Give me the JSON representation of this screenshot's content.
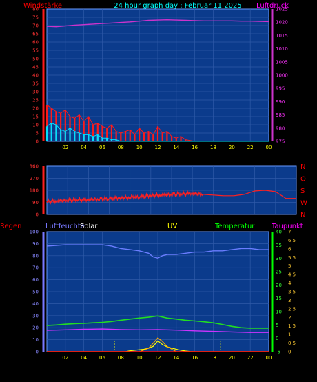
{
  "header": {
    "title": "24 hour graph day : Februar 11 2025",
    "left_label": "Windstärke",
    "right_label": "Luftdruck"
  },
  "panel2": {
    "compass": [
      "N",
      "W",
      "S",
      "O",
      "N"
    ]
  },
  "panel3": {
    "labels": {
      "regen": "Regen",
      "luftfeuchte": "Luftfeuchte",
      "solar": "Solar",
      "uv": "UV",
      "temperatur": "Temperatur",
      "taupunkt": "Taupunkt"
    }
  },
  "colors": {
    "background": "#000000",
    "plot_bg": "#0b3b8c",
    "grid": "#2f5aa8",
    "wind_speed": "#ff1a1a",
    "wind_gust": "#00e0ff",
    "pressure": "#cc33cc",
    "direction": "#ff2020",
    "humidity": "#6a7dff",
    "temperature": "#22dd22",
    "dewpoint": "#cc33ff",
    "solar": "#ffff00",
    "uv": "#ffaa00",
    "rain": "#ff0000",
    "title": "#00ffff",
    "regen_axis": "#ff0000",
    "humidity_axis": "#7878ff",
    "temp_axis": "#00ff00",
    "taupunkt_axis": "#ff66ff",
    "time_axis": "#ffff00"
  },
  "chart_data": [
    {
      "type": "line",
      "x_ticks": [
        "02",
        "04",
        "06",
        "08",
        "10",
        "12",
        "14",
        "16",
        "18",
        "20",
        "22",
        "00"
      ],
      "y_left_ticks": [
        "0",
        "5",
        "10",
        "15",
        "20",
        "25",
        "30",
        "35",
        "40",
        "45",
        "50",
        "55",
        "60",
        "65",
        "70",
        "75",
        "80"
      ],
      "y_right_ticks": [
        "975",
        "980",
        "985",
        "990",
        "995",
        "1000",
        "1005",
        "1010",
        "1015",
        "1020",
        "1025"
      ],
      "ylim_left": [
        0,
        80
      ],
      "ylim_right": [
        975,
        1025
      ],
      "series": [
        {
          "key": "wind_speed",
          "x": [
            0,
            0.5,
            1,
            1.5,
            2,
            2.5,
            3,
            3.5,
            4,
            4.5,
            5,
            5.5,
            6,
            6.5,
            7,
            7.5,
            8,
            8.5,
            9,
            9.5,
            10,
            10.5,
            11,
            11.5,
            12,
            12.5,
            13,
            13.5,
            14,
            14.5,
            15,
            16,
            18,
            20,
            22,
            24
          ],
          "values": [
            22,
            20,
            18,
            17,
            19,
            15,
            14,
            16,
            12,
            15,
            10,
            11,
            9,
            8,
            10,
            6,
            5,
            6,
            7,
            4,
            8,
            5,
            6,
            4,
            9,
            5,
            6,
            3,
            2,
            3,
            1,
            0,
            0,
            0,
            0,
            0
          ]
        },
        {
          "key": "wind_gust",
          "x": [
            0,
            0.5,
            1,
            1.5,
            2,
            2.5,
            3,
            3.5,
            4,
            4.5,
            5,
            5.5,
            6,
            6.5,
            7,
            7.5,
            8,
            9,
            10,
            12,
            14,
            16,
            20,
            24
          ],
          "values": [
            9,
            11,
            10,
            7,
            6,
            8,
            6,
            5,
            4,
            4,
            3,
            4,
            2,
            2,
            1,
            1,
            0,
            0,
            0,
            0,
            0,
            0,
            0,
            0
          ]
        },
        {
          "key": "pressure",
          "x": [
            0,
            1,
            2,
            3,
            4,
            5,
            6,
            7,
            8,
            9,
            10,
            11,
            12,
            13,
            14,
            15,
            16,
            17,
            18,
            19,
            20,
            21,
            22,
            23,
            24
          ],
          "values": [
            1018.5,
            1018.3,
            1018.6,
            1018.9,
            1019.1,
            1019.3,
            1019.5,
            1019.7,
            1019.9,
            1020.1,
            1020.4,
            1020.7,
            1020.8,
            1020.9,
            1020.8,
            1020.7,
            1020.6,
            1020.5,
            1020.5,
            1020.5,
            1020.5,
            1020.4,
            1020.4,
            1020.3,
            1020.2
          ]
        }
      ]
    },
    {
      "type": "line",
      "x_ticks": [
        "02",
        "04",
        "06",
        "08",
        "10",
        "12",
        "14",
        "16",
        "18",
        "20",
        "22",
        "00"
      ],
      "y_ticks": [
        "0",
        "90",
        "180",
        "270",
        "360"
      ],
      "ylim": [
        0,
        360
      ],
      "series": [
        {
          "key": "direction",
          "x": [
            0,
            1,
            2,
            3,
            4,
            5,
            6,
            7,
            8,
            9,
            10,
            11,
            12,
            13,
            14,
            15,
            16,
            17,
            18,
            19,
            20,
            21,
            22,
            23,
            24
          ],
          "values": [
            95,
            100,
            105,
            108,
            110,
            115,
            118,
            122,
            128,
            132,
            140,
            145,
            150,
            152,
            155,
            150,
            145,
            140,
            140,
            150,
            175,
            180,
            170,
            120,
            120
          ]
        }
      ]
    },
    {
      "type": "line",
      "x_ticks": [
        "02",
        "04",
        "06",
        "08",
        "10",
        "12",
        "14",
        "16",
        "18",
        "20",
        "22",
        "00"
      ],
      "y_left_ticks": [
        "0",
        "10",
        "20",
        "30",
        "40",
        "50",
        "60",
        "70",
        "80",
        "90",
        "100"
      ],
      "y_temp_ticks": [
        "-5",
        "0",
        "5",
        "10",
        "15",
        "20",
        "25",
        "30",
        "35",
        "40"
      ],
      "y_uv_ticks": [
        "0",
        "0,5",
        "1",
        "1,5",
        "2",
        "2,5",
        "3",
        "3,5",
        "4",
        "4,5",
        "5",
        "5,5",
        "6",
        "6,5",
        "7"
      ],
      "ylim_left": [
        0,
        100
      ],
      "ylim_temp": [
        -5,
        40
      ],
      "ylim_uv": [
        0,
        7
      ],
      "series": [
        {
          "key": "humidity",
          "x": [
            0,
            1,
            2,
            3,
            4,
            5,
            6,
            7,
            8,
            9,
            10,
            11,
            11.5,
            12,
            12.5,
            13,
            14,
            15,
            16,
            17,
            18,
            19,
            20,
            21,
            22,
            23,
            24
          ],
          "values": [
            88,
            88.5,
            89,
            89,
            89,
            89,
            89,
            88,
            86,
            85,
            84,
            82,
            79,
            78,
            80,
            81,
            81,
            82,
            83,
            83,
            84,
            84,
            85,
            86,
            86,
            85,
            85
          ]
        },
        {
          "key": "temperature",
          "x": [
            0,
            1,
            2,
            3,
            4,
            5,
            6,
            7,
            8,
            9,
            10,
            11,
            12,
            13,
            14,
            15,
            16,
            17,
            18,
            19,
            20,
            21,
            22,
            23,
            24
          ],
          "values": [
            4.8,
            5,
            5.3,
            5.5,
            5.6,
            5.8,
            6,
            6.3,
            6.8,
            7.2,
            7.6,
            7.9,
            8.4,
            7.6,
            7.2,
            6.8,
            6.5,
            6.2,
            5.8,
            5.2,
            4.5,
            4,
            3.8,
            3.8,
            3.8
          ]
        },
        {
          "key": "dewpoint",
          "x": [
            0,
            2,
            4,
            6,
            8,
            10,
            12,
            14,
            16,
            18,
            20,
            22,
            24
          ],
          "values": [
            3,
            3.2,
            3.4,
            3.5,
            3.3,
            3.2,
            3.3,
            3.1,
            2.8,
            2.6,
            2.4,
            2.2,
            2.2
          ]
        },
        {
          "key": "solar",
          "x": [
            0,
            8.5,
            9,
            9.5,
            10,
            10.5,
            11,
            11.5,
            12,
            12.5,
            13,
            13.5,
            14,
            14.5,
            15,
            15.5,
            16,
            24
          ],
          "values": [
            0,
            0,
            0.8,
            1.2,
            1.6,
            2,
            2.8,
            4.5,
            9,
            6,
            4,
            3,
            2,
            1.2,
            0.6,
            0.2,
            0,
            0
          ]
        },
        {
          "key": "uv",
          "x": [
            0,
            10,
            11,
            11.5,
            12,
            12.5,
            13,
            14,
            24
          ],
          "values": [
            0,
            0,
            0.2,
            0.5,
            0.8,
            0.6,
            0.3,
            0,
            0
          ]
        },
        {
          "key": "rain",
          "x": [
            0,
            24
          ],
          "values": [
            0,
            0
          ]
        }
      ]
    }
  ]
}
